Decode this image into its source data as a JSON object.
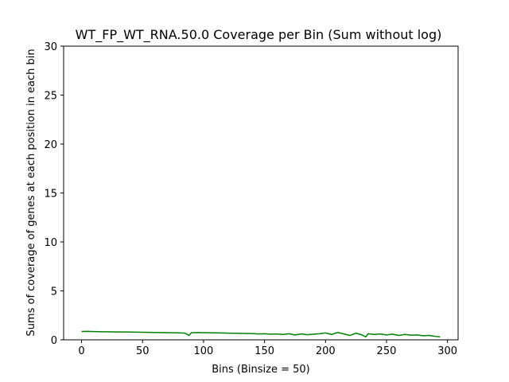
{
  "chart_data": {
    "type": "line",
    "title": "WT_FP_WT_RNA.50.0 Coverage per Bin (Sum without log)",
    "xlabel": "Bins (Binsize = 50)",
    "ylabel": "Sums of coverage of genes at each position in each bin",
    "xlim": [
      -14.7,
      308.7
    ],
    "ylim": [
      0,
      30
    ],
    "xticks": [
      0,
      50,
      100,
      150,
      200,
      250,
      300
    ],
    "yticks": [
      0,
      5,
      10,
      15,
      20,
      25,
      30
    ],
    "grid": false,
    "series": [
      {
        "color": "#008000",
        "x": [
          0,
          5,
          10,
          15,
          20,
          25,
          30,
          35,
          40,
          45,
          50,
          55,
          60,
          65,
          70,
          75,
          80,
          85,
          88,
          90,
          95,
          100,
          105,
          110,
          115,
          120,
          125,
          130,
          135,
          140,
          145,
          150,
          155,
          160,
          165,
          170,
          175,
          180,
          185,
          190,
          195,
          200,
          205,
          210,
          215,
          220,
          225,
          230,
          233,
          235,
          240,
          245,
          250,
          255,
          260,
          265,
          270,
          275,
          280,
          285,
          290,
          294
        ],
        "y": [
          0.85,
          0.86,
          0.84,
          0.83,
          0.82,
          0.81,
          0.8,
          0.8,
          0.79,
          0.78,
          0.77,
          0.76,
          0.75,
          0.74,
          0.73,
          0.72,
          0.71,
          0.68,
          0.45,
          0.72,
          0.74,
          0.73,
          0.72,
          0.71,
          0.7,
          0.68,
          0.67,
          0.66,
          0.65,
          0.64,
          0.6,
          0.62,
          0.58,
          0.6,
          0.55,
          0.62,
          0.5,
          0.6,
          0.52,
          0.58,
          0.62,
          0.7,
          0.55,
          0.75,
          0.6,
          0.45,
          0.68,
          0.5,
          0.3,
          0.62,
          0.55,
          0.6,
          0.5,
          0.58,
          0.45,
          0.55,
          0.48,
          0.5,
          0.42,
          0.45,
          0.35,
          0.3
        ]
      }
    ]
  }
}
